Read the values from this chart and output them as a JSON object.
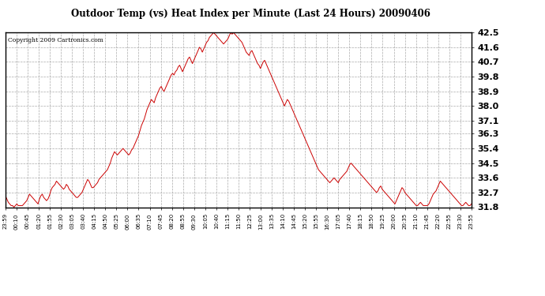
{
  "title": "Outdoor Temp (vs) Heat Index per Minute (Last 24 Hours) 20090406",
  "copyright": "Copyright 2009 Cartronics.com",
  "line_color": "#cc0000",
  "background_color": "#ffffff",
  "grid_color": "#aaaaaa",
  "ylim": [
    31.8,
    42.5
  ],
  "yticks": [
    31.8,
    32.7,
    33.6,
    34.5,
    35.4,
    36.3,
    37.1,
    38.0,
    38.9,
    39.8,
    40.7,
    41.6,
    42.5
  ],
  "xtick_labels": [
    "23:59",
    "00:10",
    "00:45",
    "01:20",
    "01:55",
    "02:30",
    "03:05",
    "03:40",
    "04:15",
    "04:50",
    "05:25",
    "06:00",
    "06:35",
    "07:10",
    "07:45",
    "08:20",
    "08:55",
    "09:30",
    "10:05",
    "10:40",
    "11:15",
    "11:50",
    "12:25",
    "13:00",
    "13:35",
    "14:10",
    "14:45",
    "15:20",
    "15:55",
    "16:30",
    "17:05",
    "17:40",
    "18:15",
    "18:50",
    "19:25",
    "20:00",
    "20:35",
    "21:10",
    "21:45",
    "22:20",
    "22:55",
    "23:30",
    "23:55"
  ],
  "data_y": [
    32.5,
    32.3,
    32.1,
    32.0,
    31.9,
    31.9,
    31.8,
    31.9,
    32.0,
    31.9,
    31.9,
    31.9,
    31.9,
    32.0,
    32.1,
    32.2,
    32.4,
    32.6,
    32.5,
    32.4,
    32.3,
    32.2,
    32.1,
    32.0,
    32.3,
    32.5,
    32.6,
    32.4,
    32.3,
    32.2,
    32.3,
    32.5,
    32.8,
    33.0,
    33.1,
    33.2,
    33.4,
    33.3,
    33.2,
    33.1,
    33.0,
    32.9,
    33.0,
    33.2,
    33.1,
    32.9,
    32.8,
    32.7,
    32.6,
    32.5,
    32.4,
    32.4,
    32.5,
    32.6,
    32.7,
    32.9,
    33.1,
    33.3,
    33.5,
    33.4,
    33.2,
    33.0,
    33.0,
    33.1,
    33.2,
    33.3,
    33.5,
    33.6,
    33.7,
    33.8,
    33.9,
    34.0,
    34.1,
    34.3,
    34.5,
    34.8,
    35.0,
    35.2,
    35.1,
    35.0,
    35.1,
    35.2,
    35.3,
    35.4,
    35.3,
    35.2,
    35.1,
    35.0,
    35.1,
    35.3,
    35.4,
    35.6,
    35.8,
    36.0,
    36.2,
    36.5,
    36.8,
    37.0,
    37.2,
    37.5,
    37.8,
    38.0,
    38.2,
    38.4,
    38.3,
    38.2,
    38.5,
    38.7,
    38.9,
    39.1,
    39.2,
    39.0,
    38.9,
    39.1,
    39.3,
    39.5,
    39.7,
    39.9,
    40.0,
    39.9,
    40.1,
    40.2,
    40.4,
    40.5,
    40.3,
    40.1,
    40.3,
    40.5,
    40.7,
    40.9,
    41.0,
    40.8,
    40.6,
    40.8,
    41.0,
    41.2,
    41.4,
    41.6,
    41.5,
    41.3,
    41.5,
    41.7,
    41.9,
    42.0,
    42.2,
    42.3,
    42.4,
    42.5,
    42.4,
    42.3,
    42.2,
    42.1,
    42.0,
    41.9,
    41.8,
    41.9,
    42.0,
    42.1,
    42.3,
    42.5,
    42.4,
    42.5,
    42.4,
    42.3,
    42.2,
    42.1,
    42.0,
    41.9,
    41.7,
    41.5,
    41.3,
    41.2,
    41.1,
    41.3,
    41.4,
    41.2,
    41.0,
    40.8,
    40.6,
    40.5,
    40.3,
    40.5,
    40.7,
    40.8,
    40.6,
    40.4,
    40.2,
    40.0,
    39.8,
    39.6,
    39.4,
    39.2,
    39.0,
    38.8,
    38.6,
    38.4,
    38.2,
    38.0,
    38.2,
    38.4,
    38.3,
    38.1,
    37.9,
    37.7,
    37.5,
    37.3,
    37.1,
    36.9,
    36.7,
    36.5,
    36.3,
    36.1,
    35.9,
    35.7,
    35.5,
    35.3,
    35.1,
    34.9,
    34.7,
    34.5,
    34.3,
    34.1,
    34.0,
    33.9,
    33.8,
    33.7,
    33.6,
    33.5,
    33.4,
    33.3,
    33.4,
    33.5,
    33.6,
    33.5,
    33.4,
    33.3,
    33.5,
    33.6,
    33.7,
    33.8,
    33.9,
    34.0,
    34.2,
    34.4,
    34.5,
    34.4,
    34.3,
    34.2,
    34.1,
    34.0,
    33.9,
    33.8,
    33.7,
    33.6,
    33.5,
    33.4,
    33.3,
    33.2,
    33.1,
    33.0,
    32.9,
    32.8,
    32.7,
    32.8,
    33.0,
    33.1,
    32.9,
    32.8,
    32.7,
    32.6,
    32.5,
    32.4,
    32.3,
    32.2,
    32.1,
    32.0,
    32.2,
    32.4,
    32.6,
    32.8,
    33.0,
    32.9,
    32.7,
    32.6,
    32.5,
    32.4,
    32.3,
    32.2,
    32.1,
    32.0,
    31.9,
    31.9,
    32.0,
    32.1,
    32.0,
    31.9,
    31.9,
    31.9,
    31.9,
    32.0,
    32.2,
    32.4,
    32.6,
    32.7,
    32.8,
    33.0,
    33.2,
    33.4,
    33.3,
    33.2,
    33.1,
    33.0,
    32.9,
    32.8,
    32.7,
    32.6,
    32.5,
    32.4,
    32.3,
    32.2,
    32.1,
    32.0,
    31.9,
    31.9,
    32.0,
    32.1,
    32.0,
    31.9,
    31.9,
    32.0
  ]
}
